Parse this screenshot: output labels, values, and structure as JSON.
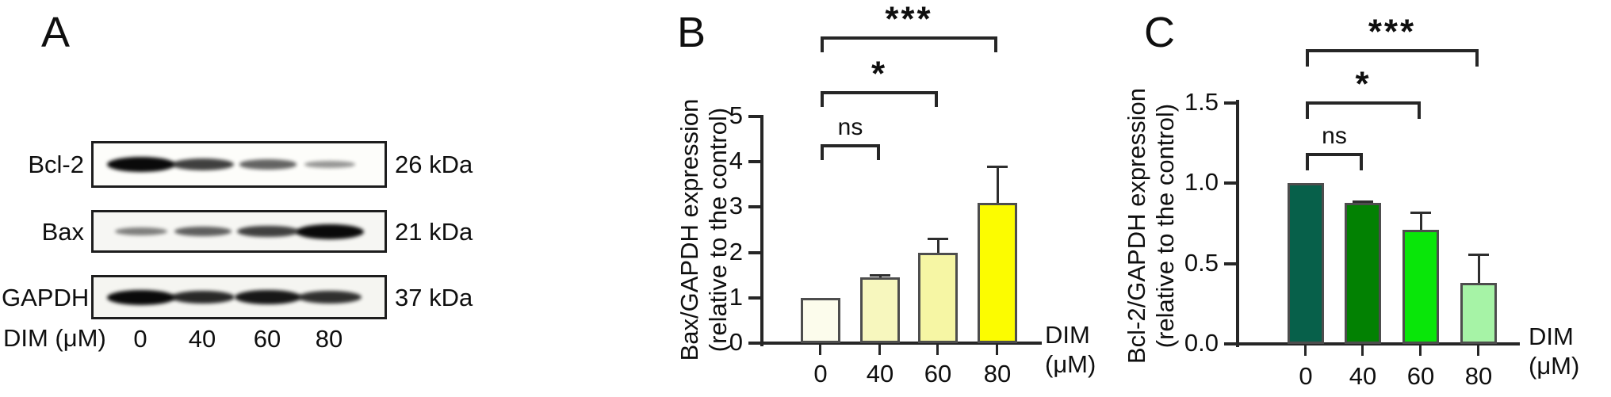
{
  "panel_a": {
    "label": "A",
    "blots": [
      {
        "protein": "Bcl-2",
        "molecular_weight": "26 kDa",
        "band_intensities": [
          1.0,
          0.7,
          0.48,
          0.2
        ]
      },
      {
        "protein": "Bax",
        "molecular_weight": "21 kDa",
        "band_intensities": [
          0.32,
          0.5,
          0.68,
          1.0
        ]
      },
      {
        "protein": "GAPDH",
        "molecular_weight": "37 kDa",
        "band_intensities": [
          1.0,
          0.82,
          0.92,
          0.78
        ]
      }
    ],
    "x_axis_label": "DIM (μM)",
    "lane_labels": [
      "0",
      "40",
      "60",
      "80"
    ]
  },
  "chart_data": [
    {
      "panel_label": "B",
      "type": "bar",
      "categories": [
        "0",
        "40",
        "60",
        "80"
      ],
      "values": [
        1.0,
        1.45,
        2.0,
        3.1
      ],
      "errors": [
        0,
        0.05,
        0.3,
        0.8
      ],
      "bar_colors": [
        "#FCFCEC",
        "#F7F7BE",
        "#F6F6A4",
        "#FCFC00"
      ],
      "ylabel_line1": "Bax/GAPDH expression",
      "ylabel_line2": "(relative to the control)",
      "xlabel_line1": "DIM",
      "xlabel_line2": "(μM)",
      "ylim": [
        0,
        5
      ],
      "yticks": [
        0,
        1,
        2,
        3,
        4,
        5
      ],
      "ytick_labels": [
        "0",
        "1",
        "2",
        "3",
        "4",
        "5"
      ],
      "grid": false,
      "significance": [
        {
          "from_index": 0,
          "to_index": 1,
          "label": "ns"
        },
        {
          "from_index": 0,
          "to_index": 2,
          "label": "*"
        },
        {
          "from_index": 0,
          "to_index": 3,
          "label": "***"
        }
      ]
    },
    {
      "panel_label": "C",
      "type": "bar",
      "categories": [
        "0",
        "40",
        "60",
        "80"
      ],
      "values": [
        1.0,
        0.88,
        0.71,
        0.38
      ],
      "errors": [
        0,
        0.01,
        0.11,
        0.18
      ],
      "bar_colors": [
        "#07604A",
        "#028102",
        "#09E609",
        "#A6F3A6"
      ],
      "ylabel_line1": "Bcl-2/GAPDH expression",
      "ylabel_line2": "(relative to the control)",
      "xlabel_line1": "DIM",
      "xlabel_line2": "(μM)",
      "ylim": [
        0,
        1.5
      ],
      "yticks": [
        0,
        0.5,
        1.0,
        1.5
      ],
      "ytick_labels": [
        "0.0",
        "0.5",
        "1.0",
        "1.5"
      ],
      "grid": false,
      "significance": [
        {
          "from_index": 0,
          "to_index": 1,
          "label": "ns"
        },
        {
          "from_index": 0,
          "to_index": 2,
          "label": "*"
        },
        {
          "from_index": 0,
          "to_index": 3,
          "label": "***"
        }
      ]
    }
  ]
}
